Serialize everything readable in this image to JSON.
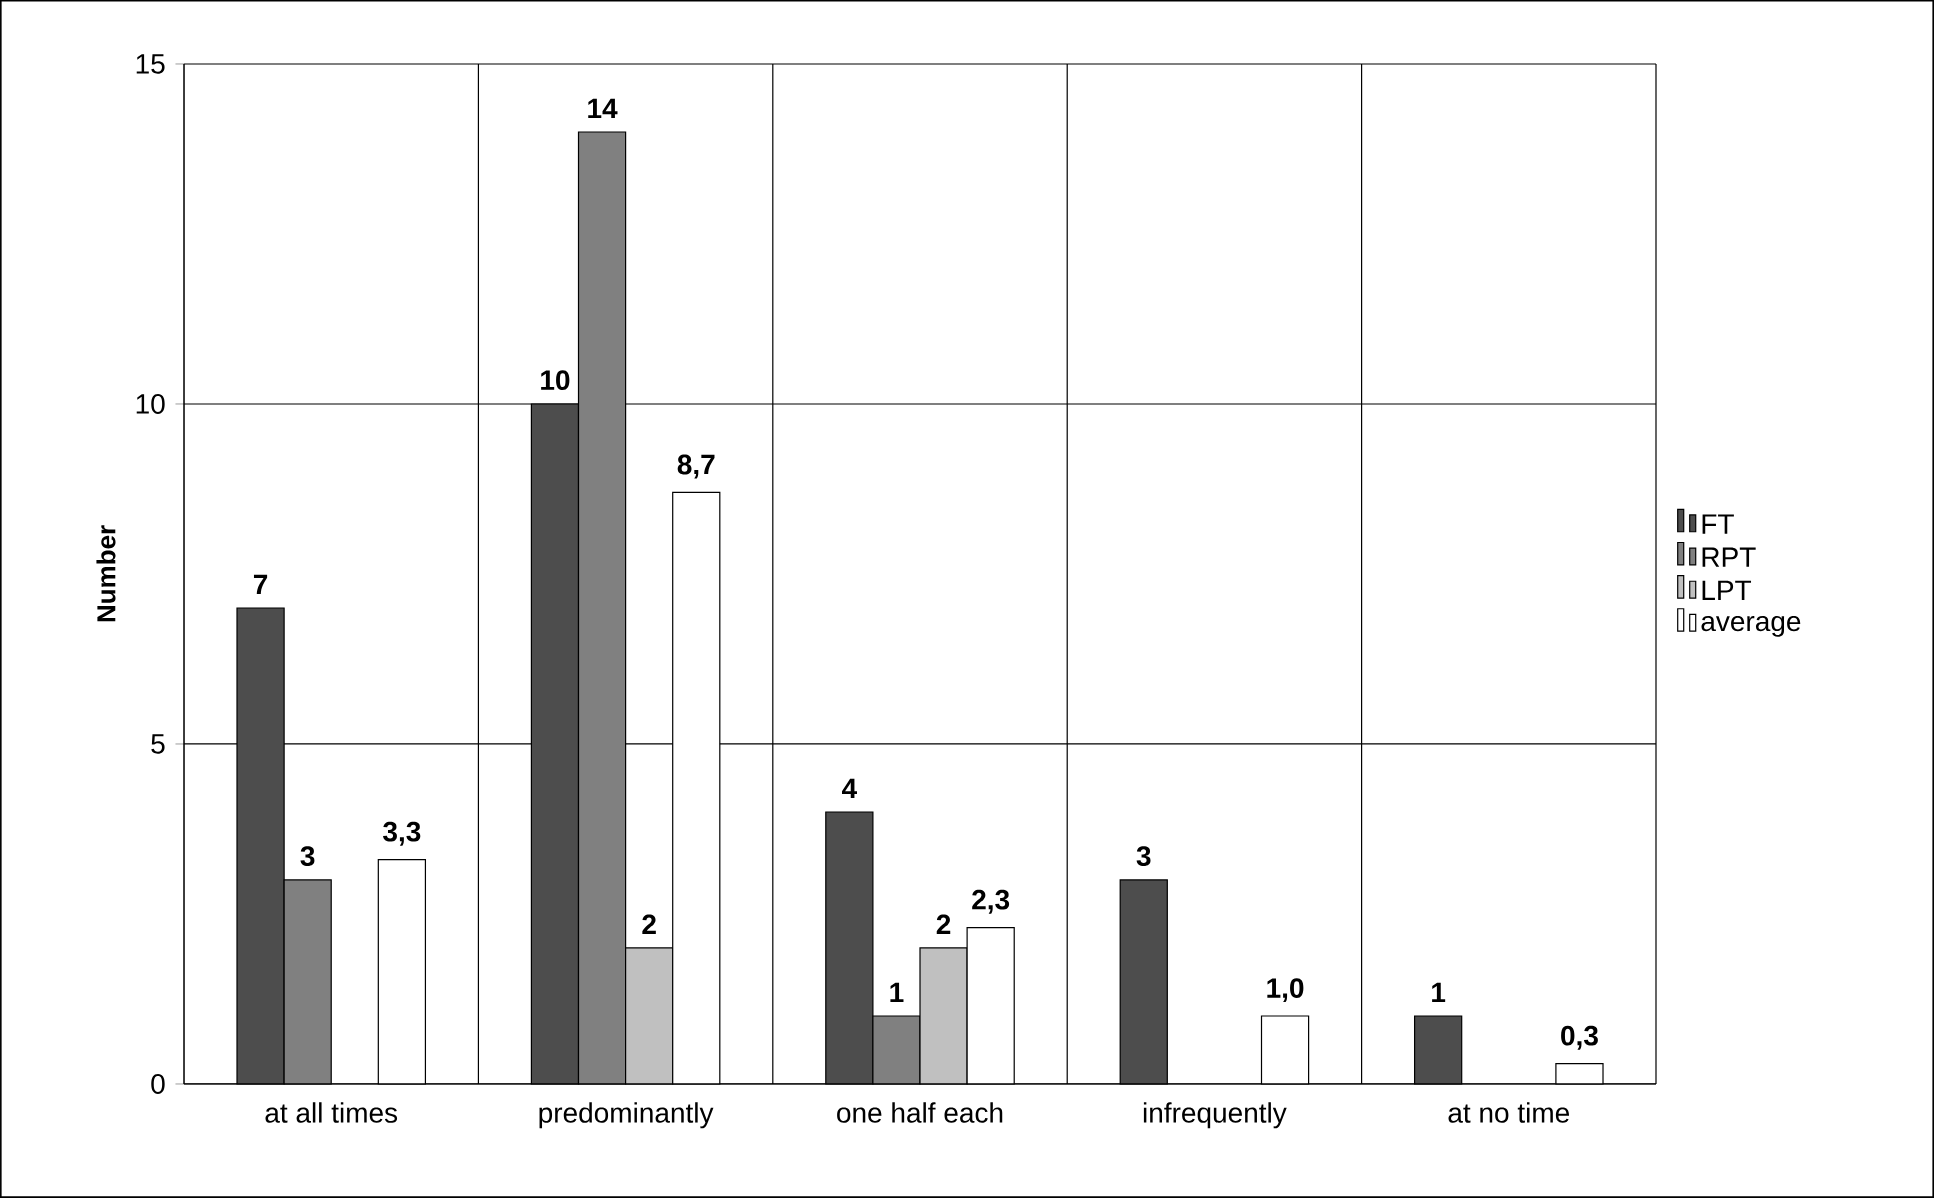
{
  "chart_data": {
    "type": "bar",
    "ylabel": "Number",
    "categories": [
      "at all times",
      "predominantly",
      "one half each",
      "infrequently",
      "at no time"
    ],
    "series": [
      {
        "name": "FT",
        "color": "#4d4d4d",
        "values": [
          7,
          10,
          4,
          3,
          1
        ],
        "value_labels": [
          "7",
          "10",
          "4",
          "3",
          "1"
        ]
      },
      {
        "name": "RPT",
        "color": "#808080",
        "values": [
          3,
          14,
          1,
          null,
          null
        ],
        "value_labels": [
          "3",
          "14",
          "1",
          null,
          null
        ]
      },
      {
        "name": "LPT",
        "color": "#c0c0c0",
        "values": [
          null,
          2,
          2,
          null,
          null
        ],
        "value_labels": [
          null,
          "2",
          "2",
          null,
          null
        ]
      },
      {
        "name": "average",
        "color": "#ffffff",
        "values": [
          3.3,
          8.7,
          2.3,
          1.0,
          0.3
        ],
        "value_labels": [
          "3,3",
          "8,7",
          "2,3",
          "1,0",
          "0,3"
        ]
      }
    ],
    "ylim": [
      0,
      15
    ],
    "yticks": [
      0,
      5,
      10,
      15
    ],
    "grid": true,
    "legend": "right"
  }
}
